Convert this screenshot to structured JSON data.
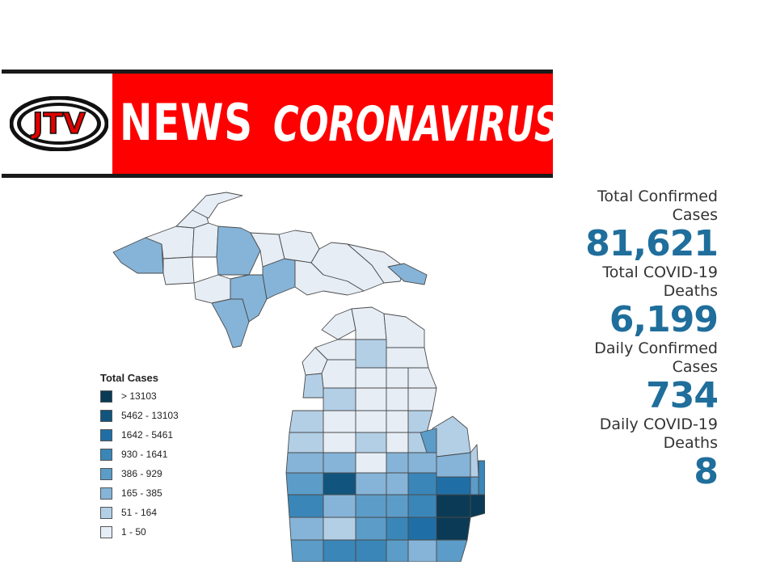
{
  "banner": {
    "logo_text": "JTV",
    "news_label": "NEWS",
    "topic_label": "CORONAVIRUS"
  },
  "legend": {
    "title": "Total Cases",
    "items": [
      {
        "label": "> 13103",
        "color": "#0b3a56"
      },
      {
        "label": "5462 - 13103",
        "color": "#11557e"
      },
      {
        "label": "1642 - 5461",
        "color": "#1f6fa6"
      },
      {
        "label": "930 - 1641",
        "color": "#3a86b8"
      },
      {
        "label": "386 - 929",
        "color": "#5c9cc8"
      },
      {
        "label": "165 - 385",
        "color": "#85b4d8"
      },
      {
        "label": "51 - 164",
        "color": "#b3cfe6"
      },
      {
        "label": "1 - 50",
        "color": "#e6edf5"
      }
    ]
  },
  "stats": [
    {
      "label": "Total Confirmed Cases",
      "label_lines": [
        "Total Confirmed",
        "Cases"
      ],
      "value": "81,621"
    },
    {
      "label": "Total COVID-19 Deaths",
      "label_lines": [
        "Total COVID-19",
        "Deaths"
      ],
      "value": "6,199"
    },
    {
      "label": "Daily Confirmed Cases",
      "label_lines": [
        "Daily Confirmed",
        "Cases"
      ],
      "value": "734"
    },
    {
      "label": "Daily COVID-19 Deaths",
      "label_lines": [
        "Daily COVID-19",
        "Deaths"
      ],
      "value": "8"
    }
  ],
  "colors": {
    "brand_red": "#ff0000",
    "stat_blue": "#1f6e9c",
    "county_border": "#4a4a4a"
  }
}
